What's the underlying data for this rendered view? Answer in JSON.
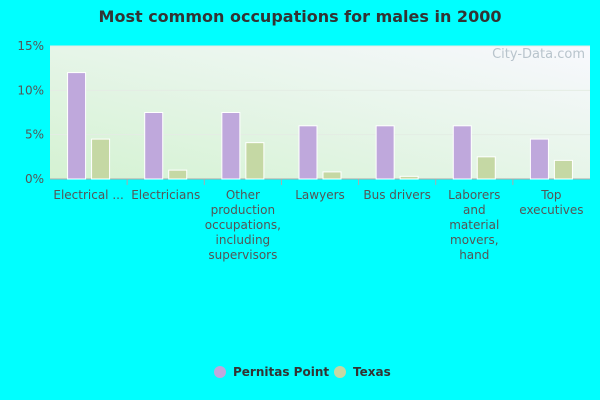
{
  "chart_data": {
    "type": "bar",
    "title": "Most common occupations for males in 2000",
    "watermark": "City-Data.com",
    "categories": [
      "Electrical ...",
      "Electricians",
      "Other production occupations, including supervisors",
      "Lawyers",
      "Bus drivers",
      "Laborers and material movers, hand",
      "Top executives"
    ],
    "series": [
      {
        "name": "Pernitas Point",
        "color": "#bfa8dc",
        "values": [
          12,
          7.5,
          7.5,
          6,
          6,
          6,
          4.5
        ]
      },
      {
        "name": "Texas",
        "color": "#c5d8a4",
        "values": [
          4.5,
          1,
          4.1,
          0.8,
          0.3,
          2.5,
          2.1
        ]
      }
    ],
    "ylim": [
      0,
      15
    ],
    "yticks": [
      {
        "value": 0,
        "label": "0%"
      },
      {
        "value": 5,
        "label": "5%"
      },
      {
        "value": 10,
        "label": "10%"
      },
      {
        "value": 15,
        "label": "15%"
      }
    ],
    "grid": true
  }
}
